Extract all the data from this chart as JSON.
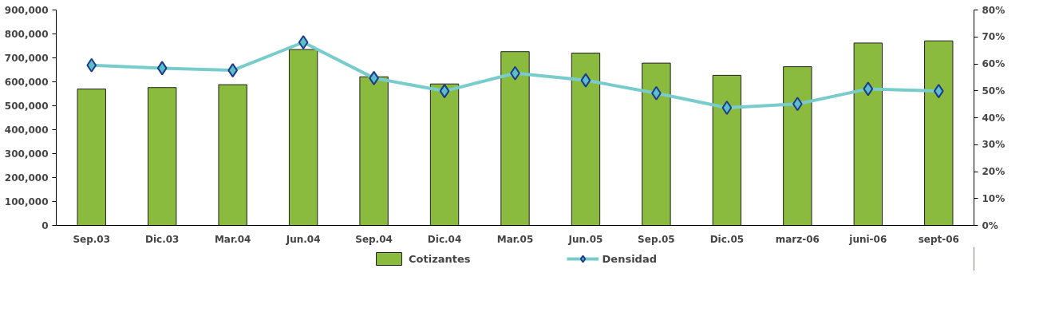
{
  "chart_data": {
    "type": "bar",
    "categories": [
      "Sep.03",
      "Dic.03",
      "Mar.04",
      "Jun.04",
      "Sep.04",
      "Dic.04",
      "Mar.05",
      "Jun.05",
      "Sep.05",
      "Dic.05",
      "marz-06",
      "juni-06",
      "sept-06"
    ],
    "series": [
      {
        "name": "Cotizantes",
        "color": "#8aba3e",
        "values": [
          570000,
          576000,
          588000,
          735000,
          621000,
          591000,
          726000,
          720000,
          678000,
          627000,
          663000,
          762000,
          771000
        ]
      },
      {
        "name": "Densidad",
        "type": "line",
        "axis": "y2",
        "color": "#78cccc",
        "marker": "diamond",
        "values": [
          59.5,
          58.4,
          57.6,
          68,
          54.7,
          49.9,
          56.5,
          53.9,
          49.1,
          43.7,
          45.1,
          50.7,
          49.9
        ]
      }
    ],
    "ylim": [
      0,
      900000
    ],
    "yticks": [
      {
        "value": 0,
        "label": "0"
      },
      {
        "value": 100000,
        "label": "100,000"
      },
      {
        "value": 200000,
        "label": "200,000"
      },
      {
        "value": 300000,
        "label": "300,000"
      },
      {
        "value": 400000,
        "label": "400,000"
      },
      {
        "value": 500000,
        "label": "500,000"
      },
      {
        "value": 600000,
        "label": "600,000"
      },
      {
        "value": 700000,
        "label": "700,000"
      },
      {
        "value": 800000,
        "label": "800,000"
      },
      {
        "value": 900000,
        "label": "900,000"
      }
    ],
    "y2lim": [
      0,
      80
    ],
    "y2ticks": [
      {
        "value": 0,
        "label": "0%"
      },
      {
        "value": 10,
        "label": "10%"
      },
      {
        "value": 20,
        "label": "20%"
      },
      {
        "value": 30,
        "label": "30%"
      },
      {
        "value": 40,
        "label": "40%"
      },
      {
        "value": 50,
        "label": "50%"
      },
      {
        "value": 60,
        "label": "60%"
      },
      {
        "value": 70,
        "label": "70%"
      },
      {
        "value": 80,
        "label": "80%"
      }
    ],
    "grid": false,
    "legend": "bottom"
  }
}
